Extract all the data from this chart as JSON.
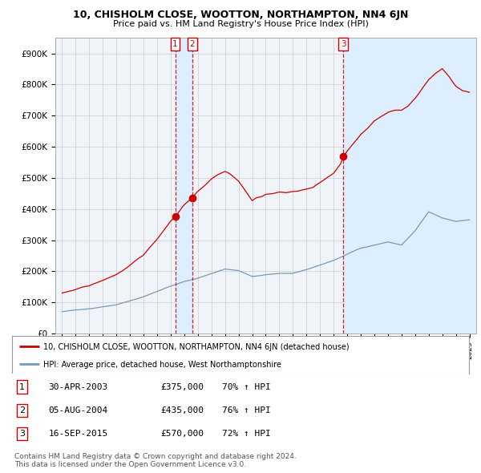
{
  "title1": "10, CHISHOLM CLOSE, WOOTTON, NORTHAMPTON, NN4 6JN",
  "title2": "Price paid vs. HM Land Registry's House Price Index (HPI)",
  "ylabel_ticks": [
    "£0",
    "£100K",
    "£200K",
    "£300K",
    "£400K",
    "£500K",
    "£600K",
    "£700K",
    "£800K",
    "£900K"
  ],
  "ytick_values": [
    0,
    100000,
    200000,
    300000,
    400000,
    500000,
    600000,
    700000,
    800000,
    900000
  ],
  "ylim": [
    0,
    950000
  ],
  "xlim_start": 1994.5,
  "xlim_end": 2025.5,
  "line1_color": "#cc0000",
  "line2_color": "#7799bb",
  "shade_color": "#ddeeff",
  "sale_points": [
    {
      "year": 2003.33,
      "price": 375000,
      "label": "1"
    },
    {
      "year": 2004.58,
      "price": 435000,
      "label": "2"
    },
    {
      "year": 2015.7,
      "price": 570000,
      "label": "3"
    }
  ],
  "legend_line1": "10, CHISHOLM CLOSE, WOOTTON, NORTHAMPTON, NN4 6JN (detached house)",
  "legend_line2": "HPI: Average price, detached house, West Northamptonshire",
  "table": [
    {
      "num": "1",
      "date": "30-APR-2003",
      "price": "£375,000",
      "hpi": "70% ↑ HPI"
    },
    {
      "num": "2",
      "date": "05-AUG-2004",
      "price": "£435,000",
      "hpi": "76% ↑ HPI"
    },
    {
      "num": "3",
      "date": "16-SEP-2015",
      "price": "£570,000",
      "hpi": "72% ↑ HPI"
    }
  ],
  "footnote1": "Contains HM Land Registry data © Crown copyright and database right 2024.",
  "footnote2": "This data is licensed under the Open Government Licence v3.0.",
  "bg_color": "#ffffff",
  "plot_bg_color": "#f0f4f8",
  "grid_color": "#cccccc"
}
